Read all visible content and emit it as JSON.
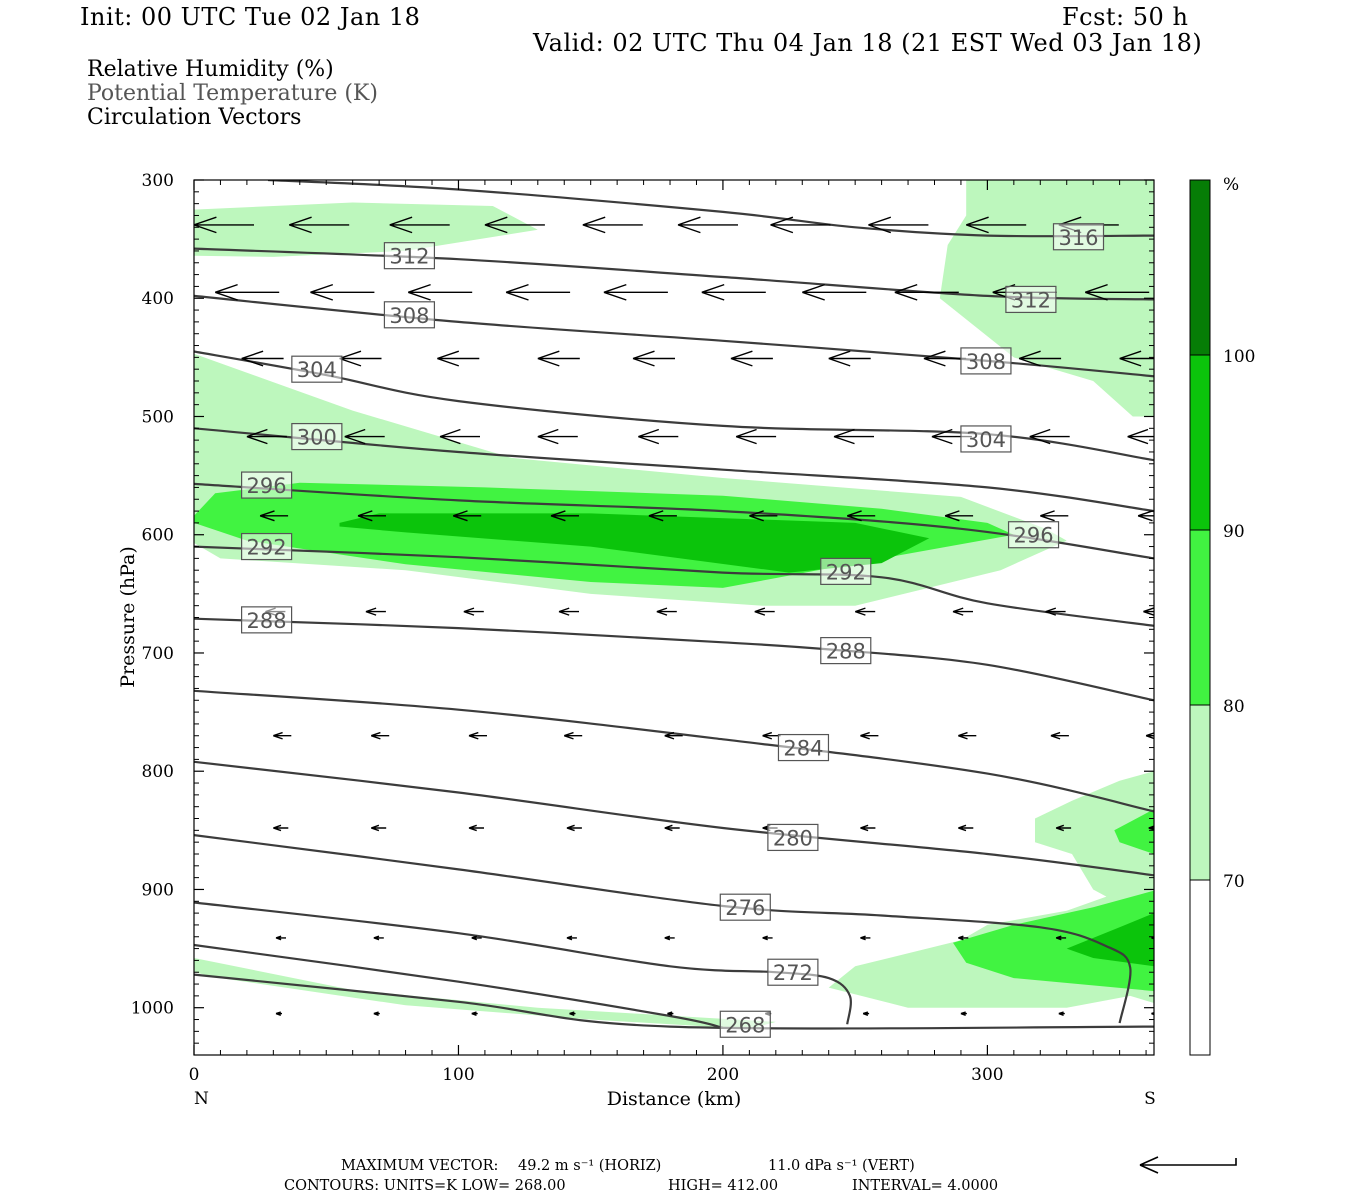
{
  "header": {
    "init": "Init: 00 UTC Tue 02 Jan 18",
    "fcst": "Fcst:   50 h",
    "valid": "Valid: 02 UTC Thu 04 Jan 18 (21 EST Wed 03 Jan 18)"
  },
  "legend": {
    "line1": "Relative Humidity (%)",
    "line2": "Potential Temperature (K)",
    "line3": "Circulation Vectors"
  },
  "footer": {
    "max_vector_label": "MAXIMUM VECTOR:",
    "horiz": "49.2 m s⁻¹ (HORIZ)",
    "vert": "11.0 dPa s⁻¹ (VERT)",
    "contours": "CONTOURS:  UNITS=K  LOW=   268.00",
    "high": "HIGH=  412.00",
    "interval": "INTERVAL=    4.0000"
  },
  "colors": {
    "rh70": "#bdf7bd",
    "rh80": "#41f341",
    "rh90": "#0bc40b",
    "rh100": "#067d06",
    "contour": "#3c3c3c"
  },
  "chart_data": {
    "type": "cross-section",
    "xlabel": "Distance (km)",
    "ylabel": "Pressure (hPa)",
    "xlim": [
      0,
      363
    ],
    "ylim": [
      1040,
      300
    ],
    "x_ticks": [
      "0",
      "100",
      "200",
      "300"
    ],
    "x_tick_values": [
      0,
      100,
      200,
      300
    ],
    "y_ticks": [
      "300",
      "400",
      "500",
      "600",
      "700",
      "800",
      "900",
      "1000"
    ],
    "y_tick_values": [
      300,
      400,
      500,
      600,
      700,
      800,
      900,
      1000
    ],
    "left_end_label": "N",
    "right_end_label": "S",
    "colorbar": {
      "unit": "%",
      "levels": [
        "70",
        "80",
        "90",
        "100"
      ],
      "level_values": [
        70,
        80,
        90,
        100
      ]
    },
    "theta_contours": [
      {
        "label": "316",
        "label_x": 325,
        "label_p": 348,
        "points": [
          [
            28,
            300
          ],
          [
            100,
            308
          ],
          [
            200,
            327
          ],
          [
            250,
            340
          ],
          [
            300,
            347
          ],
          [
            363,
            347
          ]
        ]
      },
      {
        "label": "312",
        "label_x": 72,
        "label_p": 364,
        "points": [
          [
            0,
            358
          ],
          [
            100,
            367
          ],
          [
            200,
            382
          ],
          [
            300,
            398
          ],
          [
            363,
            401
          ]
        ]
      },
      {
        "label": "312",
        "label_x": 307,
        "label_p": 401,
        "points": []
      },
      {
        "label": "308",
        "label_x": 72,
        "label_p": 414,
        "points": [
          [
            0,
            398
          ],
          [
            100,
            420
          ],
          [
            200,
            436
          ],
          [
            300,
            453
          ],
          [
            363,
            466
          ]
        ]
      },
      {
        "label": "308",
        "label_x": 290,
        "label_p": 453,
        "points": []
      },
      {
        "label": "304",
        "label_x": 37,
        "label_p": 460,
        "points": [
          [
            0,
            445
          ],
          [
            50,
            465
          ],
          [
            100,
            487
          ],
          [
            200,
            508
          ],
          [
            300,
            515
          ],
          [
            363,
            537
          ]
        ]
      },
      {
        "label": "304",
        "label_x": 290,
        "label_p": 519,
        "points": []
      },
      {
        "label": "300",
        "label_x": 37,
        "label_p": 517,
        "points": [
          [
            0,
            510
          ],
          [
            100,
            530
          ],
          [
            200,
            545
          ],
          [
            300,
            560
          ],
          [
            363,
            580
          ]
        ]
      },
      {
        "label": "296",
        "label_x": 18,
        "label_p": 558,
        "points": [
          [
            0,
            557
          ],
          [
            100,
            571
          ],
          [
            200,
            580
          ],
          [
            290,
            595
          ],
          [
            363,
            620
          ]
        ]
      },
      {
        "label": "296",
        "label_x": 308,
        "label_p": 600,
        "points": []
      },
      {
        "label": "292",
        "label_x": 18,
        "label_p": 610,
        "points": [
          [
            0,
            610
          ],
          [
            100,
            619
          ],
          [
            200,
            632
          ],
          [
            260,
            636
          ],
          [
            300,
            658
          ],
          [
            363,
            677
          ]
        ]
      },
      {
        "label": "292",
        "label_x": 237,
        "label_p": 631,
        "points": []
      },
      {
        "label": "288",
        "label_x": 18,
        "label_p": 672,
        "points": [
          [
            0,
            671
          ],
          [
            100,
            679
          ],
          [
            200,
            691
          ],
          [
            240,
            697
          ],
          [
            300,
            710
          ],
          [
            363,
            740
          ]
        ]
      },
      {
        "label": "288",
        "label_x": 237,
        "label_p": 698,
        "points": []
      },
      {
        "label": "284",
        "label_x": 221,
        "label_p": 780,
        "points": [
          [
            0,
            732
          ],
          [
            100,
            748
          ],
          [
            200,
            773
          ],
          [
            300,
            802
          ],
          [
            363,
            834
          ]
        ]
      },
      {
        "label": "280",
        "label_x": 217,
        "label_p": 856,
        "points": [
          [
            0,
            792
          ],
          [
            100,
            818
          ],
          [
            200,
            848
          ],
          [
            300,
            870
          ],
          [
            363,
            888
          ]
        ]
      },
      {
        "label": "276",
        "label_x": 199,
        "label_p": 915,
        "points": [
          [
            0,
            854
          ],
          [
            100,
            883
          ],
          [
            200,
            914
          ],
          [
            260,
            922
          ],
          [
            320,
            932
          ],
          [
            345,
            948
          ],
          [
            354,
            966
          ],
          [
            350,
            1013
          ]
        ]
      },
      {
        "label": "272",
        "label_x": 217,
        "label_p": 970,
        "points": [
          [
            0,
            911
          ],
          [
            100,
            937
          ],
          [
            180,
            965
          ],
          [
            220,
            970
          ],
          [
            240,
            975
          ],
          [
            248,
            990
          ],
          [
            247,
            1014
          ]
        ]
      },
      {
        "label": "268",
        "label_x": 199,
        "label_p": 1014,
        "points": [
          [
            0,
            947
          ],
          [
            100,
            978
          ],
          [
            180,
            1007
          ],
          [
            200,
            1017
          ]
        ]
      },
      {
        "label": "",
        "label_x": 0,
        "label_p": 0,
        "points": [
          [
            0,
            972
          ],
          [
            100,
            995
          ],
          [
            180,
            1016
          ],
          [
            363,
            1016
          ]
        ]
      }
    ],
    "rh_regions": [
      {
        "level": 70,
        "points": [
          [
            0,
            325
          ],
          [
            60,
            319
          ],
          [
            113,
            322
          ],
          [
            130,
            342
          ],
          [
            80,
            360
          ],
          [
            30,
            365
          ],
          [
            0,
            364
          ]
        ]
      },
      {
        "level": 70,
        "points": [
          [
            292,
            300
          ],
          [
            363,
            300
          ],
          [
            363,
            500
          ],
          [
            355,
            500
          ],
          [
            340,
            470
          ],
          [
            310,
            450
          ],
          [
            282,
            400
          ],
          [
            285,
            355
          ],
          [
            292,
            330
          ]
        ]
      },
      {
        "level": 70,
        "points": [
          [
            0,
            447
          ],
          [
            60,
            495
          ],
          [
            120,
            535
          ],
          [
            200,
            552
          ],
          [
            290,
            568
          ],
          [
            322,
            595
          ],
          [
            330,
            605
          ],
          [
            305,
            630
          ],
          [
            250,
            660
          ],
          [
            215,
            660
          ],
          [
            150,
            650
          ],
          [
            80,
            630
          ],
          [
            10,
            620
          ],
          [
            0,
            607
          ]
        ]
      },
      {
        "level": 80,
        "points": [
          [
            0,
            584
          ],
          [
            8,
            565
          ],
          [
            40,
            556
          ],
          [
            110,
            560
          ],
          [
            200,
            567
          ],
          [
            260,
            578
          ],
          [
            300,
            590
          ],
          [
            310,
            600
          ],
          [
            260,
            620
          ],
          [
            200,
            645
          ],
          [
            150,
            640
          ],
          [
            80,
            625
          ],
          [
            20,
            605
          ],
          [
            0,
            590
          ]
        ]
      },
      {
        "level": 90,
        "points": [
          [
            55,
            590
          ],
          [
            70,
            582
          ],
          [
            150,
            582
          ],
          [
            250,
            590
          ],
          [
            278,
            603
          ],
          [
            260,
            624
          ],
          [
            225,
            632
          ],
          [
            150,
            610
          ],
          [
            80,
            598
          ],
          [
            55,
            593
          ]
        ]
      },
      {
        "level": 70,
        "points": [
          [
            318,
            840
          ],
          [
            332,
            825
          ],
          [
            350,
            808
          ],
          [
            363,
            800
          ],
          [
            363,
            996
          ],
          [
            354,
            990
          ],
          [
            330,
            1000
          ],
          [
            270,
            1000
          ],
          [
            240,
            983
          ],
          [
            250,
            965
          ],
          [
            290,
            943
          ],
          [
            300,
            930
          ],
          [
            330,
            918
          ],
          [
            345,
            906
          ],
          [
            340,
            900
          ],
          [
            332,
            870
          ],
          [
            318,
            860
          ]
        ]
      },
      {
        "level": 80,
        "points": [
          [
            348,
            850
          ],
          [
            363,
            832
          ],
          [
            363,
            870
          ],
          [
            350,
            860
          ]
        ]
      },
      {
        "level": 80,
        "points": [
          [
            287,
            945
          ],
          [
            310,
            930
          ],
          [
            340,
            915
          ],
          [
            363,
            901
          ],
          [
            363,
            986
          ],
          [
            310,
            975
          ],
          [
            292,
            962
          ]
        ]
      },
      {
        "level": 90,
        "points": [
          [
            330,
            950
          ],
          [
            350,
            932
          ],
          [
            363,
            920
          ],
          [
            363,
            965
          ],
          [
            340,
            958
          ]
        ]
      },
      {
        "level": 70,
        "points": [
          [
            0,
            958
          ],
          [
            60,
            985
          ],
          [
            130,
            1000
          ],
          [
            190,
            1008
          ],
          [
            220,
            1012
          ],
          [
            210,
            1018
          ],
          [
            150,
            1010
          ],
          [
            80,
            998
          ],
          [
            10,
            975
          ],
          [
            0,
            970
          ]
        ]
      }
    ],
    "vectors": [
      {
        "p": 338,
        "len_px": 60,
        "xs": [
          0,
          36,
          74,
          110,
          147,
          183,
          218,
          255,
          292,
          327
        ]
      },
      {
        "p": 395,
        "len_px": 64,
        "xs": [
          8,
          44,
          81,
          118,
          155,
          192,
          230,
          265,
          302,
          337
        ]
      },
      {
        "p": 451,
        "len_px": 42,
        "xs": [
          18,
          55,
          92,
          130,
          166,
          203,
          240,
          276,
          312,
          350
        ]
      },
      {
        "p": 517,
        "len_px": 40,
        "xs": [
          20,
          57,
          93,
          130,
          168,
          205,
          242,
          279,
          316,
          353
        ]
      },
      {
        "p": 584,
        "len_px": 28,
        "xs": [
          25,
          62,
          98,
          135,
          172,
          210,
          247,
          284,
          320,
          357
        ]
      },
      {
        "p": 665,
        "len_px": 20,
        "xs": [
          27,
          65,
          102,
          138,
          175,
          212,
          250,
          287,
          322,
          359
        ]
      },
      {
        "p": 770,
        "len_px": 18,
        "xs": [
          30,
          67,
          104,
          140,
          178,
          215,
          252,
          289,
          324,
          360
        ]
      },
      {
        "p": 848,
        "len_px": 15,
        "xs": [
          30,
          67,
          104,
          141,
          178,
          215,
          252,
          289,
          326,
          361
        ]
      },
      {
        "p": 941,
        "len_px": 10,
        "xs": [
          31,
          68,
          105,
          141,
          178,
          215,
          252,
          289,
          326,
          362
        ]
      },
      {
        "p": 1005,
        "len_px": 6,
        "xs": [
          31,
          68,
          105,
          142,
          179,
          216,
          253,
          290,
          327,
          362
        ]
      }
    ]
  }
}
